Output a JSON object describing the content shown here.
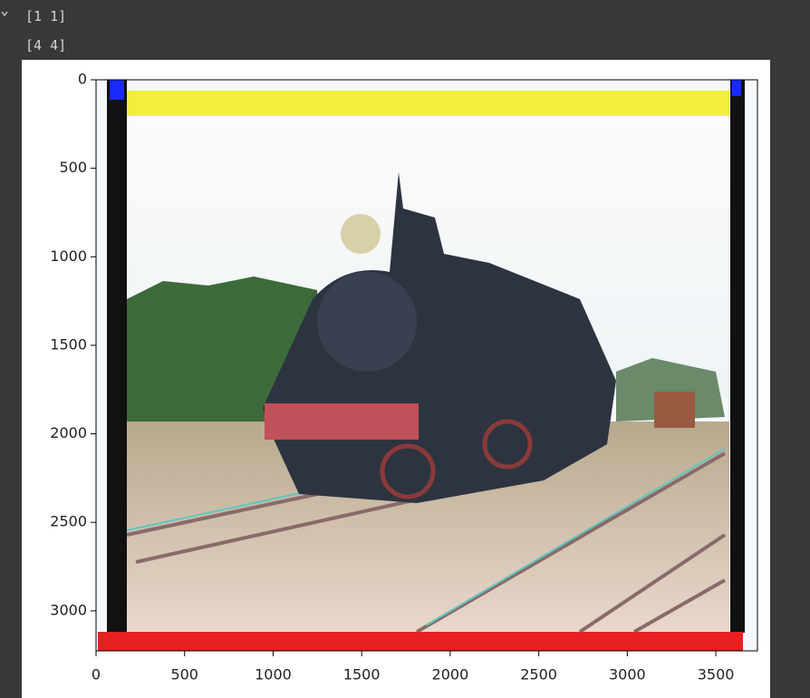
{
  "output_lines": [
    "[1 1]",
    "[4 4]"
  ],
  "chart_data": {
    "type": "image",
    "xlim": [
      0,
      3735
    ],
    "ylim": [
      3226,
      0
    ],
    "xticks": [
      0,
      500,
      1000,
      1500,
      2000,
      2500,
      3000,
      3500
    ],
    "yticks": [
      0,
      500,
      1000,
      1500,
      2000,
      2500,
      3000
    ]
  }
}
